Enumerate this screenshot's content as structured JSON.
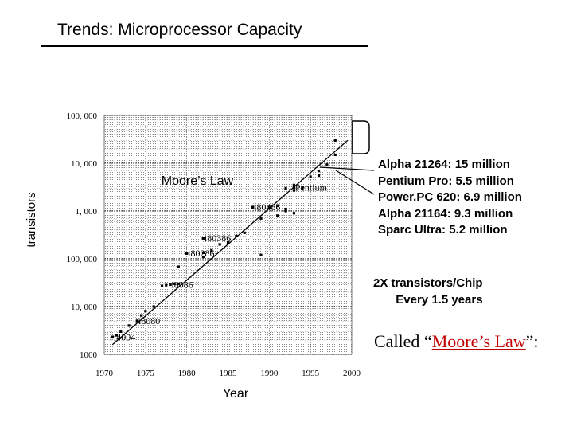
{
  "slide": {
    "title": "Trends: Microprocessor Capacity"
  },
  "notes": {
    "processors": [
      "Alpha 21264: 15 million",
      "Pentium Pro: 5.5 million",
      "Power.PC 620: 6.9 million",
      "Alpha 21164: 9.3 million",
      "Sparc Ultra: 5.2 million"
    ],
    "rate_line1": "2X transistors/Chip",
    "rate_line2": "Every 1.5 years",
    "called_prefix": "Called “",
    "called_link": "Moore’s Law",
    "called_suffix": "”:"
  },
  "chart_data": {
    "type": "scatter",
    "title": "",
    "xlabel": "Year",
    "ylabel": "transistors",
    "x_scale": "linear",
    "y_scale": "log",
    "xlim": [
      1970,
      2000
    ],
    "ylim": [
      1000,
      100000000
    ],
    "x_ticks": [
      "1970",
      "1975",
      "1980",
      "1985",
      "1990",
      "1995",
      "2000"
    ],
    "y_ticks": [
      {
        "value": 1000,
        "label": "1000"
      },
      {
        "value": 10000,
        "label": "10, 000"
      },
      {
        "value": 100000,
        "label": "100, 000"
      },
      {
        "value": 1000000,
        "label": "1, 000"
      },
      {
        "value": 10000000,
        "label": "10, 000"
      },
      {
        "value": 100000000,
        "label": "100, 000"
      }
    ],
    "trend_label": "Moore’s Law",
    "trend_line": {
      "x": [
        1971,
        1999.5
      ],
      "y": [
        1600,
        30000000
      ]
    },
    "highlighted": [
      {
        "label": "i4004",
        "x": 1971,
        "y": 2300
      },
      {
        "label": "i8080",
        "x": 1974,
        "y": 5000
      },
      {
        "label": "i8086",
        "x": 1978,
        "y": 29000
      },
      {
        "label": "i80286",
        "x": 1980,
        "y": 130000
      },
      {
        "label": "i80386",
        "x": 1982,
        "y": 270000
      },
      {
        "label": "i80486",
        "x": 1988,
        "y": 1200000
      },
      {
        "label": "Pentium",
        "x": 1993,
        "y": 3100000
      }
    ],
    "other_points": [
      {
        "x": 1971.5,
        "y": 2500
      },
      {
        "x": 1972,
        "y": 3000
      },
      {
        "x": 1973,
        "y": 4000
      },
      {
        "x": 1974.5,
        "y": 6500
      },
      {
        "x": 1975,
        "y": 8000
      },
      {
        "x": 1976,
        "y": 10000
      },
      {
        "x": 1977,
        "y": 27000
      },
      {
        "x": 1977.5,
        "y": 28000
      },
      {
        "x": 1978.5,
        "y": 30000
      },
      {
        "x": 1979,
        "y": 30000
      },
      {
        "x": 1979,
        "y": 68000
      },
      {
        "x": 1982,
        "y": 110000
      },
      {
        "x": 1982,
        "y": 134000
      },
      {
        "x": 1983,
        "y": 150000
      },
      {
        "x": 1984,
        "y": 200000
      },
      {
        "x": 1985,
        "y": 220000
      },
      {
        "x": 1986,
        "y": 300000
      },
      {
        "x": 1987,
        "y": 350000
      },
      {
        "x": 1989,
        "y": 120000
      },
      {
        "x": 1989,
        "y": 700000
      },
      {
        "x": 1990,
        "y": 1200000
      },
      {
        "x": 1991,
        "y": 1300000
      },
      {
        "x": 1991,
        "y": 800000
      },
      {
        "x": 1992,
        "y": 1100000
      },
      {
        "x": 1992,
        "y": 1000000
      },
      {
        "x": 1993,
        "y": 900000
      },
      {
        "x": 1992,
        "y": 3000000
      },
      {
        "x": 1993,
        "y": 3500000
      },
      {
        "x": 1993,
        "y": 2700000
      },
      {
        "x": 1994,
        "y": 3100000
      },
      {
        "x": 1994,
        "y": 2900000
      },
      {
        "x": 1995,
        "y": 5200000
      },
      {
        "x": 1996,
        "y": 5500000
      },
      {
        "x": 1996,
        "y": 6900000
      },
      {
        "x": 1997,
        "y": 9300000
      },
      {
        "x": 1998,
        "y": 15000000
      },
      {
        "x": 1998,
        "y": 30000000
      }
    ]
  }
}
